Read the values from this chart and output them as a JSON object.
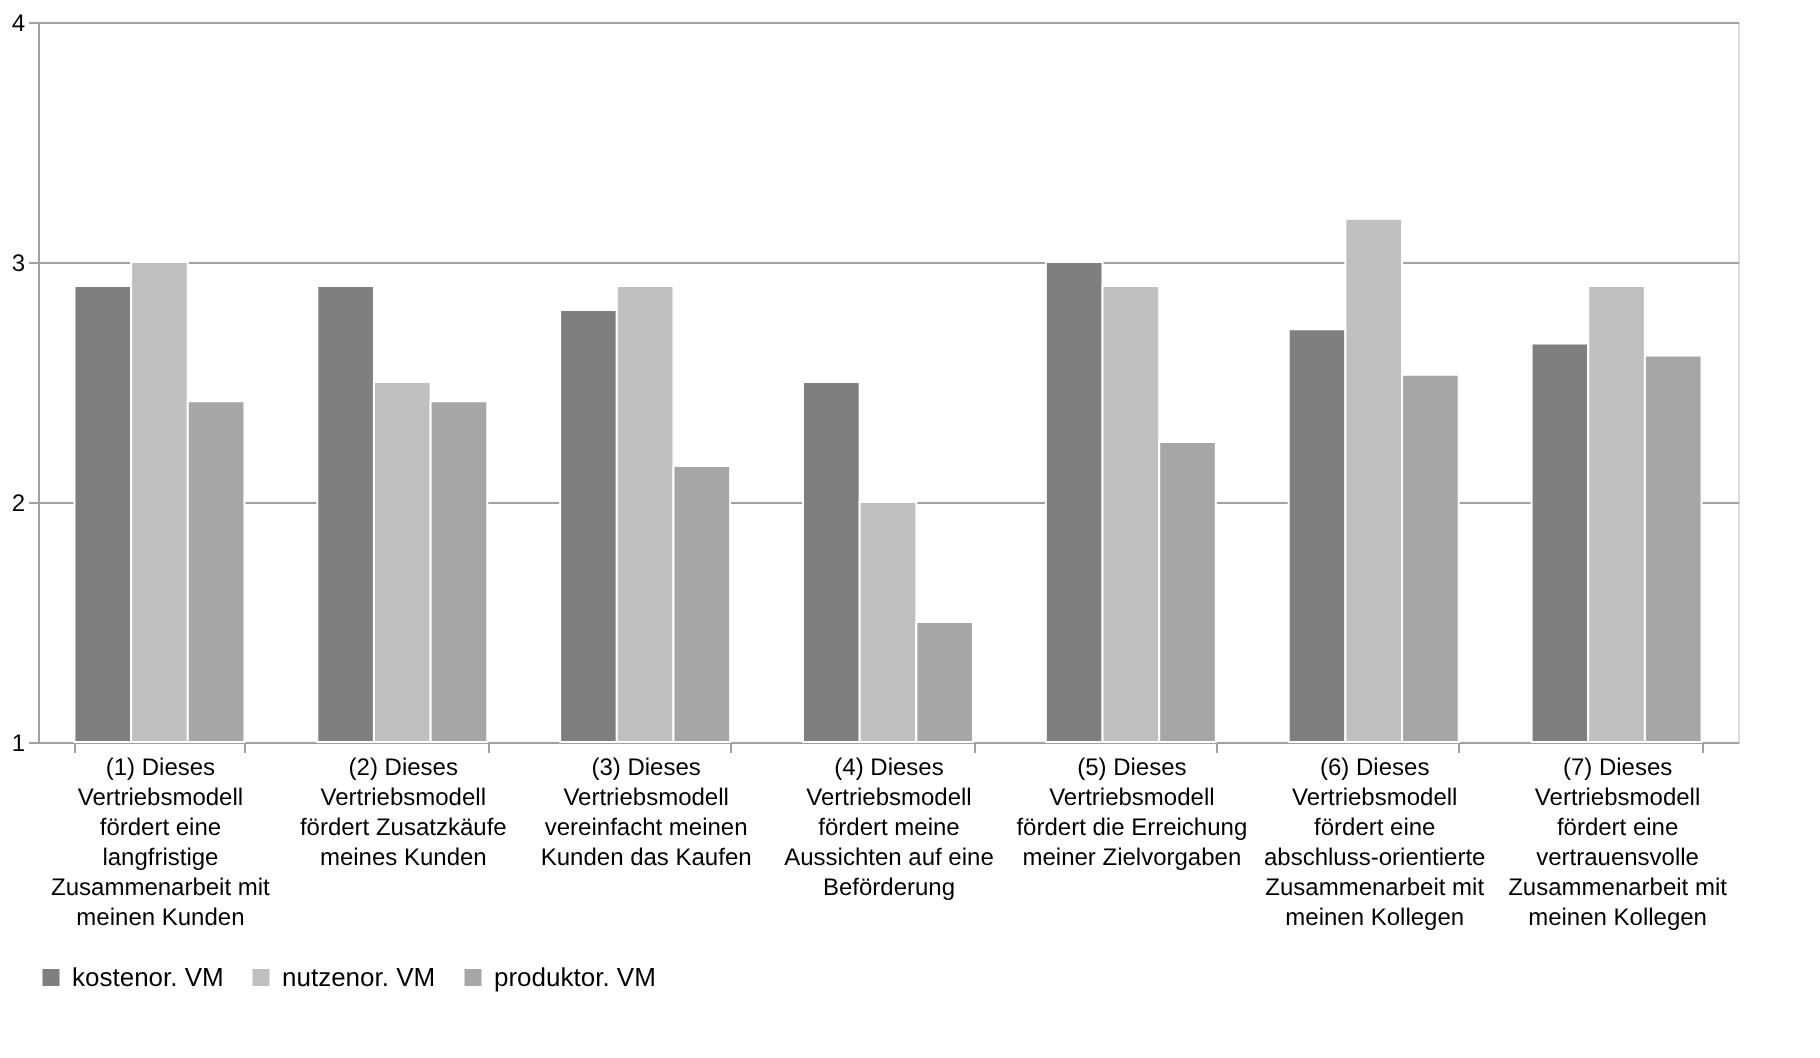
{
  "chart_data": {
    "type": "bar",
    "categories": [
      "(1) Dieses Vertriebsmodell fördert eine langfristige Zusammenarbeit mit meinen Kunden",
      "(2) Dieses Vertriebsmodell fördert Zusatzkäufe meines Kunden",
      "(3) Dieses Vertriebsmodell vereinfacht meinen Kunden das Kaufen",
      "(4) Dieses Vertriebsmodell fördert meine Aussichten auf eine Beförderung",
      "(5) Dieses Vertriebsmodell fördert die Erreichung meiner Zielvorgaben",
      "(6) Dieses Vertriebsmodell fördert eine abschluss-orientierte Zusammenarbeit mit meinen Kollegen",
      "(7) Dieses Vertriebsmodell fördert eine vertrauensvolle Zusammenarbeit mit meinen Kollegen"
    ],
    "series": [
      {
        "name": "kostenor. VM",
        "color": "#7f7f7f",
        "values": [
          2.9,
          2.9,
          2.8,
          2.5,
          3.0,
          2.72,
          2.66
        ]
      },
      {
        "name": "nutzenor. VM",
        "color": "#bfbfbf",
        "values": [
          3.0,
          2.5,
          2.9,
          2.0,
          2.9,
          3.18,
          2.9
        ]
      },
      {
        "name": "produktor. VM",
        "color": "#a6a6a6",
        "values": [
          2.42,
          2.42,
          2.15,
          1.5,
          2.25,
          2.53,
          2.61
        ]
      }
    ],
    "ylim": [
      1,
      4
    ],
    "yticks": [
      1,
      2,
      3,
      4
    ],
    "grid": "y",
    "legend": "bottom"
  }
}
